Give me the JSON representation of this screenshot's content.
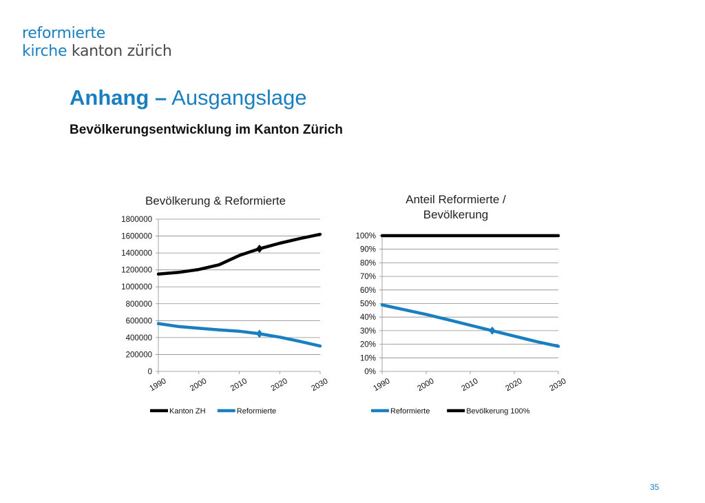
{
  "logo": {
    "line1": "reformierte",
    "line2_a": "kirche",
    "line2_b": " kanton zürich"
  },
  "title": {
    "bold": "Anhang –",
    "normal": " Ausgangslage"
  },
  "subtitle": "Bevölkerungsentwicklung im Kanton Zürich",
  "page_number": "35",
  "colors": {
    "accent": "#1a7fc1",
    "black": "#000000",
    "blue_series": "#1a7fc1"
  },
  "chart_data": [
    {
      "type": "line",
      "title": "Bevölkerung & Reformierte",
      "xlabel": "",
      "ylabel": "",
      "x_ticks": [
        "1990",
        "2000",
        "2010",
        "2020",
        "2030"
      ],
      "y_ticks": [
        "0",
        "200000",
        "400000",
        "600000",
        "800000",
        "1000000",
        "1200000",
        "1400000",
        "1600000",
        "1800000"
      ],
      "xlim": [
        1990,
        2030
      ],
      "ylim": [
        0,
        1800000
      ],
      "grid": true,
      "legend": "bottom",
      "series": [
        {
          "name": "Kanton ZH",
          "color": "#000000",
          "x": [
            1990,
            1995,
            2000,
            2005,
            2010,
            2015,
            2020,
            2025,
            2030
          ],
          "y": [
            1150000,
            1170000,
            1205000,
            1260000,
            1370000,
            1450000,
            1515000,
            1570000,
            1620000
          ],
          "marker_x": 2015
        },
        {
          "name": "Reformierte",
          "color": "#1a7fc1",
          "x": [
            1990,
            1995,
            2000,
            2005,
            2010,
            2015,
            2020,
            2025,
            2030
          ],
          "y": [
            565000,
            530000,
            510000,
            490000,
            475000,
            445000,
            405000,
            355000,
            300000
          ],
          "marker_x": 2015
        }
      ]
    },
    {
      "type": "line",
      "title_lines": [
        "Anteil Reformierte /",
        "Bevölkerung"
      ],
      "xlabel": "",
      "ylabel": "",
      "x_ticks": [
        "1990",
        "2000",
        "2010",
        "2020",
        "2030"
      ],
      "y_ticks": [
        "0%",
        "10%",
        "20%",
        "30%",
        "40%",
        "50%",
        "60%",
        "70%",
        "80%",
        "90%",
        "100%"
      ],
      "xlim": [
        1990,
        2030
      ],
      "ylim": [
        0,
        100
      ],
      "grid": true,
      "legend": "bottom",
      "series": [
        {
          "name": "Reformierte",
          "color": "#1a7fc1",
          "x": [
            1990,
            1995,
            2000,
            2005,
            2010,
            2015,
            2020,
            2025,
            2030
          ],
          "y": [
            49,
            45.5,
            42,
            38,
            34,
            30,
            26,
            22,
            18.5
          ],
          "marker_x": 2015
        },
        {
          "name": "Bevölkerung 100%",
          "color": "#000000",
          "x": [
            1990,
            2030
          ],
          "y": [
            100,
            100
          ]
        }
      ]
    }
  ]
}
